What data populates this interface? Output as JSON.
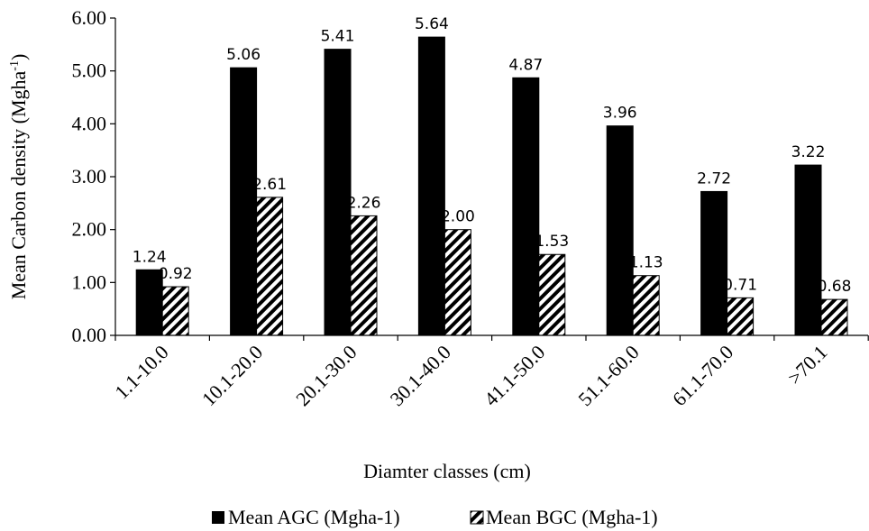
{
  "chart_data": {
    "type": "bar",
    "categories": [
      "1.1-10.0",
      "10.1-20.0",
      "20.1-30.0",
      "30.1-40.0",
      "41.1-50.0",
      "51.1-60.0",
      "61.1-70.0",
      ">70.1"
    ],
    "series": [
      {
        "name": "Mean AGC (Mgha-1)",
        "values": [
          1.24,
          5.06,
          5.41,
          5.64,
          4.87,
          3.96,
          2.72,
          3.22
        ],
        "labels": [
          "1.24",
          "5.06",
          "5.41",
          "5.64",
          "4.87",
          "3.96",
          "2.72",
          "3.22"
        ],
        "color": "#000000",
        "pattern": "solid"
      },
      {
        "name": "Mean BGC (Mgha-1)",
        "values": [
          0.92,
          2.61,
          2.26,
          2.0,
          1.53,
          1.13,
          0.71,
          0.68
        ],
        "labels": [
          "0.92",
          "2.61",
          "2.26",
          "2.00",
          "1.53",
          "1.13",
          "0.71",
          "0.68"
        ],
        "color": "#000000",
        "pattern": "diagonal-hatch"
      }
    ],
    "xlabel": "Diamter classes (cm)",
    "ylabel": "Mean Carbon density (Mgha",
    "ylabel_superscript": "-1",
    "ylabel_close": ")",
    "ylim": [
      0,
      6
    ],
    "yticks": [
      "0.00",
      "1.00",
      "2.00",
      "3.00",
      "4.00",
      "5.00",
      "6.00"
    ],
    "grid": false,
    "legend_position": "bottom"
  }
}
